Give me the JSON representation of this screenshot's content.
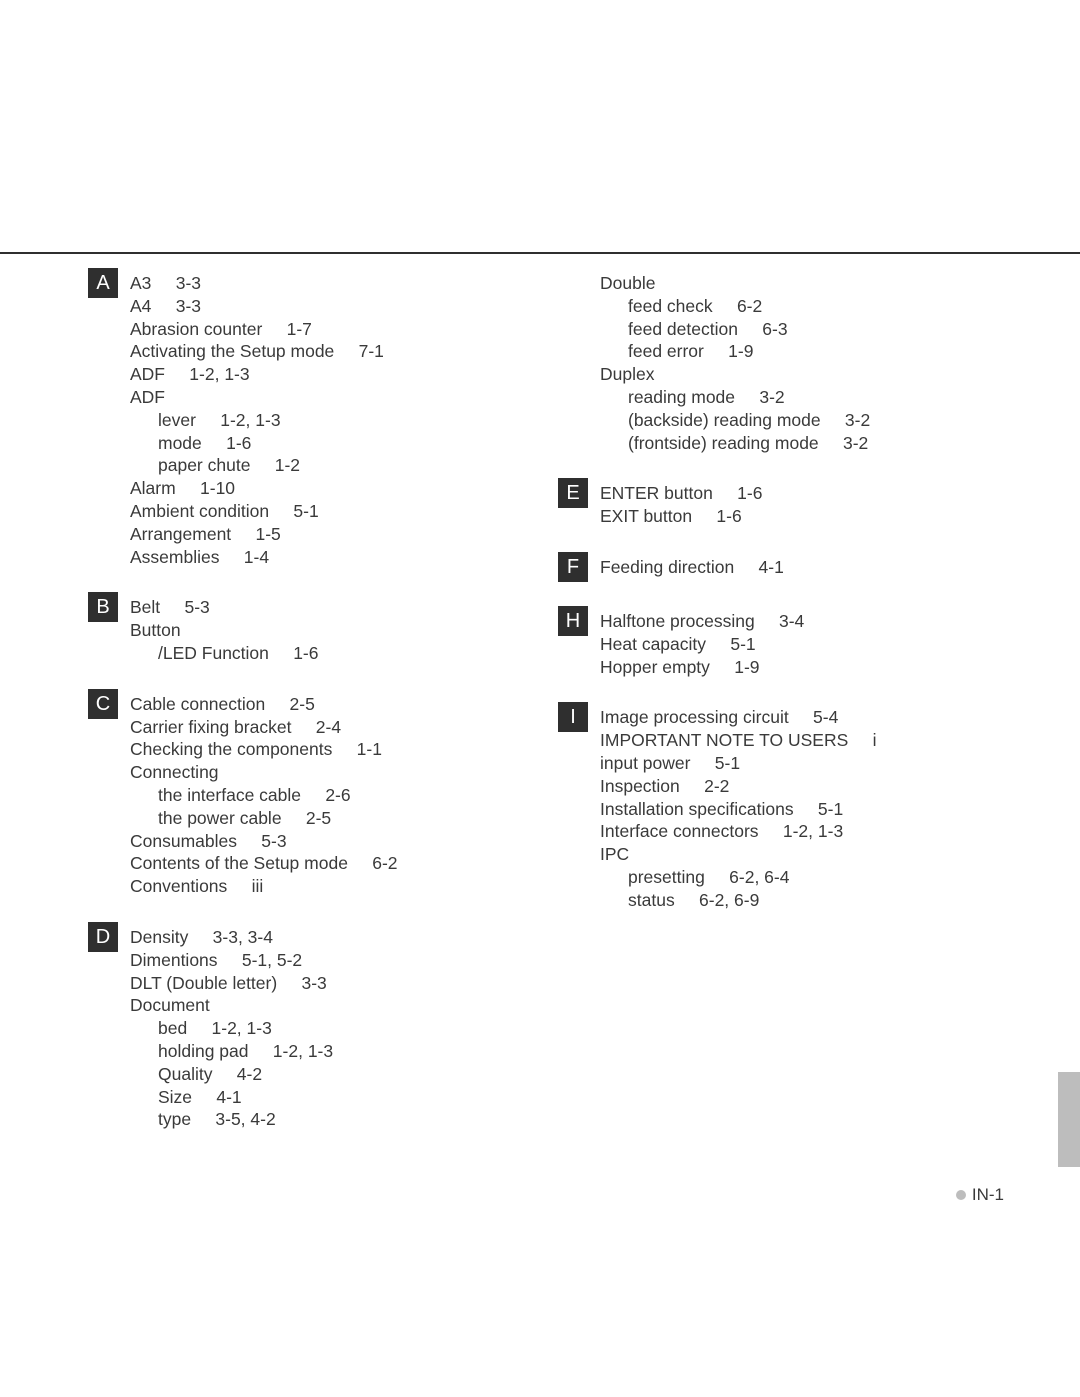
{
  "page_number": "IN-1",
  "colors": {
    "text": "#3a3a3a",
    "box_bg": "#2f2f2f",
    "box_fg": "#ffffff",
    "bullet": "#bdbdbd",
    "rule": "#2f2f2f",
    "background": "#ffffff"
  },
  "left_sections": [
    {
      "letter": "A",
      "entries": [
        {
          "t": "A3",
          "p": "3-3"
        },
        {
          "t": "A4",
          "p": "3-3"
        },
        {
          "t": "Abrasion counter",
          "p": "1-7"
        },
        {
          "t": "Activating the Setup mode",
          "p": "7-1"
        },
        {
          "t": "ADF",
          "p": "1-2, 1-3"
        },
        {
          "t": "ADF",
          "p": ""
        },
        {
          "t": "lever",
          "p": "1-2, 1-3",
          "sub": true
        },
        {
          "t": "mode",
          "p": "1-6",
          "sub": true
        },
        {
          "t": "paper chute",
          "p": "1-2",
          "sub": true
        },
        {
          "t": "Alarm",
          "p": "1-10"
        },
        {
          "t": "Ambient condition",
          "p": "5-1"
        },
        {
          "t": "Arrangement",
          "p": "1-5"
        },
        {
          "t": "Assemblies",
          "p": "1-4"
        }
      ]
    },
    {
      "letter": "B",
      "entries": [
        {
          "t": "Belt",
          "p": "5-3"
        },
        {
          "t": "Button",
          "p": ""
        },
        {
          "t": "/LED Function",
          "p": "1-6",
          "sub": true
        }
      ]
    },
    {
      "letter": "C",
      "entries": [
        {
          "t": "Cable connection",
          "p": "2-5"
        },
        {
          "t": "Carrier fixing bracket",
          "p": "2-4"
        },
        {
          "t": "Checking the components",
          "p": "1-1"
        },
        {
          "t": "Connecting",
          "p": ""
        },
        {
          "t": "the interface cable",
          "p": "2-6",
          "sub": true
        },
        {
          "t": "the power cable",
          "p": "2-5",
          "sub": true
        },
        {
          "t": "Consumables",
          "p": "5-3"
        },
        {
          "t": "Contents of the Setup mode",
          "p": "6-2"
        },
        {
          "t": "Conventions",
          "p": "iii"
        }
      ]
    },
    {
      "letter": "D",
      "entries": [
        {
          "t": "Density",
          "p": "3-3, 3-4"
        },
        {
          "t": "Dimentions",
          "p": "5-1, 5-2"
        },
        {
          "t": "DLT (Double letter)",
          "p": "3-3"
        },
        {
          "t": "Document",
          "p": ""
        },
        {
          "t": "bed",
          "p": "1-2, 1-3",
          "sub": true
        },
        {
          "t": "holding pad",
          "p": "1-2, 1-3",
          "sub": true
        },
        {
          "t": "Quality",
          "p": "4-2",
          "sub": true
        },
        {
          "t": "Size",
          "p": "4-1",
          "sub": true
        },
        {
          "t": "type",
          "p": "3-5, 4-2",
          "sub": true
        }
      ]
    }
  ],
  "right_sections": [
    {
      "letter": "",
      "entries": [
        {
          "t": "Double",
          "p": ""
        },
        {
          "t": "feed check",
          "p": "6-2",
          "sub": true
        },
        {
          "t": "feed detection",
          "p": "6-3",
          "sub": true
        },
        {
          "t": "feed error",
          "p": "1-9",
          "sub": true
        },
        {
          "t": "Duplex",
          "p": ""
        },
        {
          "t": "reading mode",
          "p": "3-2",
          "sub": true
        },
        {
          "t": "(backside) reading mode",
          "p": "3-2",
          "sub": true
        },
        {
          "t": "(frontside) reading mode",
          "p": "3-2",
          "sub": true
        }
      ]
    },
    {
      "letter": "E",
      "entries": [
        {
          "t": "ENTER button",
          "p": "1-6"
        },
        {
          "t": "EXIT button",
          "p": "1-6"
        }
      ]
    },
    {
      "letter": "F",
      "entries": [
        {
          "t": "Feeding direction",
          "p": "4-1"
        }
      ]
    },
    {
      "letter": "H",
      "entries": [
        {
          "t": "Halftone processing",
          "p": "3-4"
        },
        {
          "t": "Heat capacity",
          "p": "5-1"
        },
        {
          "t": "Hopper empty",
          "p": "1-9"
        }
      ]
    },
    {
      "letter": "I",
      "entries": [
        {
          "t": "Image processing circuit",
          "p": "5-4"
        },
        {
          "t": "IMPORTANT NOTE TO USERS",
          "p": "i"
        },
        {
          "t": "input power",
          "p": "5-1"
        },
        {
          "t": "Inspection",
          "p": "2-2"
        },
        {
          "t": "Installation specifications",
          "p": "5-1"
        },
        {
          "t": "Interface connectors",
          "p": "1-2, 1-3"
        },
        {
          "t": "IPC",
          "p": ""
        },
        {
          "t": "presetting",
          "p": "6-2, 6-4",
          "sub": true
        },
        {
          "t": "status",
          "p": "6-2, 6-9",
          "sub": true
        }
      ]
    }
  ]
}
